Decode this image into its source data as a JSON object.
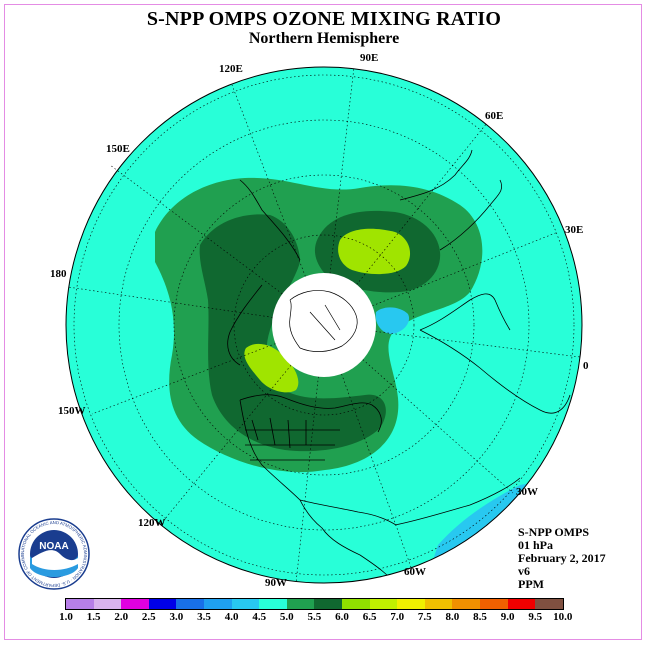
{
  "title": "S-NPP OMPS OZONE MIXING RATIO",
  "subtitle": "Northern Hemisphere",
  "longitude_labels": {
    "e120": "120E",
    "e90": "90E",
    "e60": "60E",
    "e30": "30E",
    "e0": "0",
    "w30": "30W",
    "w60": "60W",
    "w90": "90W",
    "w120": "120W",
    "w150": "150W",
    "lon180": "180",
    "e150": "150E"
  },
  "info": {
    "instrument": "S-NPP OMPS",
    "level": "01 hPa",
    "date": "February 2, 2017",
    "version": "v6",
    "units": "PPM"
  },
  "logo": {
    "text": "NOAA",
    "ring_text": "NATIONAL OCEANIC AND ATMOSPHERIC ADMINISTRATION · U.S. DEPARTMENT OF COMMERCE"
  },
  "colorbar": {
    "ticks": [
      "1.0",
      "1.5",
      "2.0",
      "2.5",
      "3.0",
      "3.5",
      "4.0",
      "4.5",
      "5.0",
      "5.5",
      "6.0",
      "6.5",
      "7.0",
      "7.5",
      "8.0",
      "8.5",
      "9.0",
      "9.5",
      "10.0"
    ],
    "colors": [
      "#b77fe8",
      "#d9b3ee",
      "#e000e0",
      "#0000e8",
      "#1870e8",
      "#1fa0f0",
      "#28c8f0",
      "#28ffd8",
      "#20a050",
      "#106830",
      "#90e000",
      "#c0f000",
      "#f0f000",
      "#f0c000",
      "#f09000",
      "#f06000",
      "#f00000",
      "#805040"
    ]
  },
  "map_colors": {
    "range_4_0_4_5": "#28c8f0",
    "range_4_5_5_0": "#28ffd8",
    "range_5_0_5_5": "#20a050",
    "range_5_5_6_0": "#106830",
    "range_6_0_6_5": "#90e000",
    "range_6_5_7_0": "#c0f000",
    "no_data": "#ffffff"
  }
}
